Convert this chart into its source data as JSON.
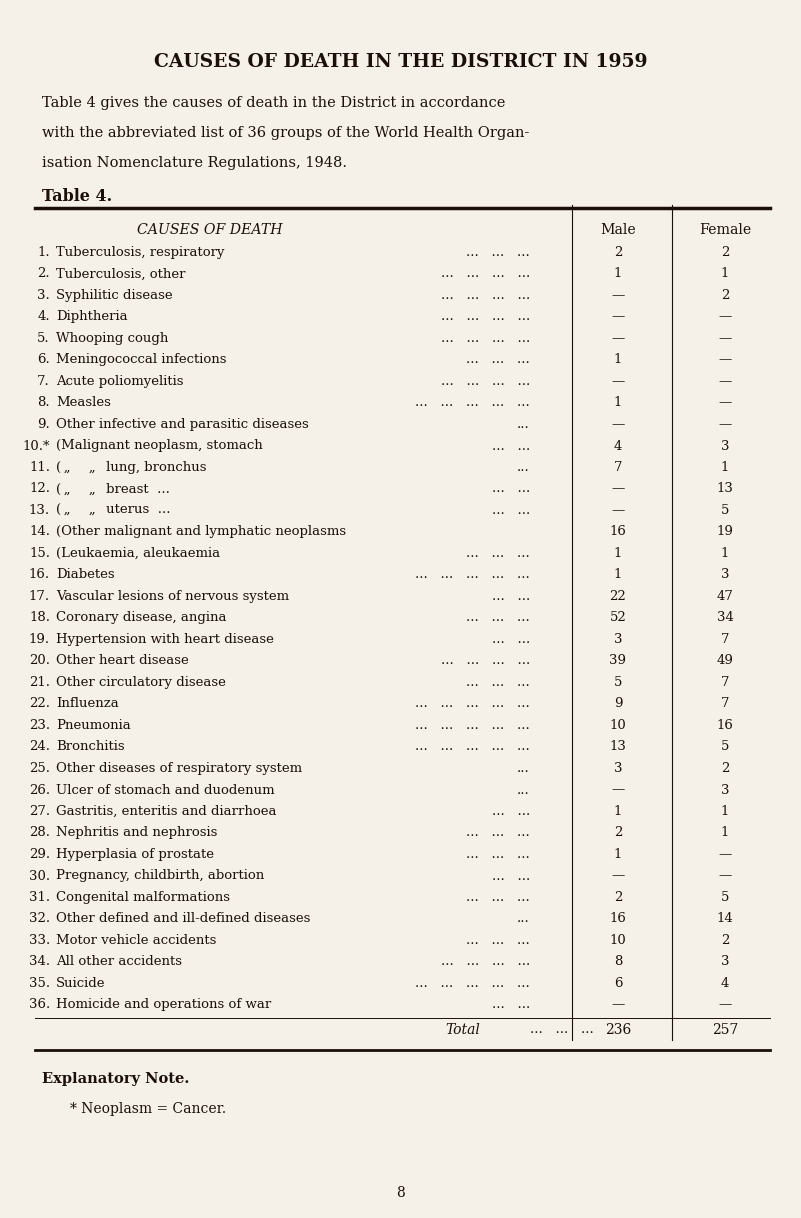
{
  "title": "CAUSES OF DEATH IN THE DISTRICT IN 1959",
  "intro": "Table 4 gives the causes of death in the District in accordance\nwith the abbreviated list of 36 groups of the World Health Organ-\nisation Nomenclature Regulations, 1948.",
  "table_title": "Table 4.",
  "col_header": "CAUSES OF DEATH",
  "col_male": "Male",
  "col_female": "Female",
  "rows": [
    {
      "num": "1.",
      "label": "Tuberculosis, respiratory",
      "dots": "...   ...   ...",
      "male": "2",
      "female": "2"
    },
    {
      "num": "2.",
      "label": "Tuberculosis, other",
      "dots": "...   ...   ...   ...",
      "male": "1",
      "female": "1"
    },
    {
      "num": "3.",
      "label": "Syphilitic disease",
      "dots": "...   ...   ...   ...",
      "male": "—",
      "female": "2"
    },
    {
      "num": "4.",
      "label": "Diphtheria",
      "dots": "...   ...   ...   ...",
      "male": "—",
      "female": "—"
    },
    {
      "num": "5.",
      "label": "Whooping cough",
      "dots": "...   ...   ...   ...",
      "male": "—",
      "female": "—"
    },
    {
      "num": "6.",
      "label": "Meningococcal infections",
      "dots": "...   ...   ...",
      "male": "1",
      "female": "—"
    },
    {
      "num": "7.",
      "label": "Acute poliomyelitis",
      "dots": "...   ...   ...   ...",
      "male": "—",
      "female": "—"
    },
    {
      "num": "8.",
      "label": "Measles",
      "dots": "...   ...   ...   ...   ...",
      "male": "1",
      "female": "—"
    },
    {
      "num": "9.",
      "label": "Other infective and parasitic diseases",
      "dots": "...",
      "male": "—",
      "female": "—"
    },
    {
      "num": "10.*",
      "label": "(Malignant neoplasm, stomach",
      "dots": "...   ...",
      "male": "4",
      "female": "3"
    },
    {
      "num": "11.",
      "label": "( „       „    lung, bronchus",
      "dots": "...",
      "male": "7",
      "female": "1"
    },
    {
      "num": "12.",
      "label": "( „       „    breast  ...",
      "dots": "...   ...",
      "male": "—",
      "female": "13"
    },
    {
      "num": "13.",
      "label": "( „       „    uterus  ...",
      "dots": "...   ...",
      "male": "—",
      "female": "5"
    },
    {
      "num": "14.",
      "label": "(Other malignant and lymphatic neoplasms",
      "dots": "",
      "male": "16",
      "female": "19"
    },
    {
      "num": "15.",
      "label": "(Leukaemia, aleukaemia",
      "dots": "...   ...   ...",
      "male": "1",
      "female": "1"
    },
    {
      "num": "16.",
      "label": "Diabetes",
      "dots": "...   ...   ...   ...   ...",
      "male": "1",
      "female": "3"
    },
    {
      "num": "17.",
      "label": "Vascular lesions of nervous system",
      "dots": "...   ...",
      "male": "22",
      "female": "47"
    },
    {
      "num": "18.",
      "label": "Coronary disease, angina",
      "dots": "...   ...   ...",
      "male": "52",
      "female": "34"
    },
    {
      "num": "19.",
      "label": "Hypertension with heart disease",
      "dots": "...   ...",
      "male": "3",
      "female": "7"
    },
    {
      "num": "20.",
      "label": "Other heart disease",
      "dots": "...   ...   ...   ...",
      "male": "39",
      "female": "49"
    },
    {
      "num": "21.",
      "label": "Other circulatory disease",
      "dots": "...   ...   ...",
      "male": "5",
      "female": "7"
    },
    {
      "num": "22.",
      "label": "Influenza",
      "dots": "...   ...   ...   ...   ...",
      "male": "9",
      "female": "7"
    },
    {
      "num": "23.",
      "label": "Pneumonia",
      "dots": "...   ...   ...   ...   ...",
      "male": "10",
      "female": "16"
    },
    {
      "num": "24.",
      "label": "Bronchitis",
      "dots": "...   ...   ...   ...   ...",
      "male": "13",
      "female": "5"
    },
    {
      "num": "25.",
      "label": "Other diseases of respiratory system",
      "dots": "...",
      "male": "3",
      "female": "2"
    },
    {
      "num": "26.",
      "label": "Ulcer of stomach and duodenum",
      "dots": "...",
      "male": "—",
      "female": "3"
    },
    {
      "num": "27.",
      "label": "Gastritis, enteritis and diarrhoea",
      "dots": "...   ...",
      "male": "1",
      "female": "1"
    },
    {
      "num": "28.",
      "label": "Nephritis and nephrosis",
      "dots": "...   ...   ...",
      "male": "2",
      "female": "1"
    },
    {
      "num": "29.",
      "label": "Hyperplasia of prostate",
      "dots": "...   ...   ...",
      "male": "1",
      "female": "—"
    },
    {
      "num": "30.",
      "label": "Pregnancy, childbirth, abortion",
      "dots": "...   ...",
      "male": "—",
      "female": "—"
    },
    {
      "num": "31.",
      "label": "Congenital malformations",
      "dots": "...   ...   ...",
      "male": "2",
      "female": "5"
    },
    {
      "num": "32.",
      "label": "Other defined and ill-defined diseases",
      "dots": "...",
      "male": "16",
      "female": "14"
    },
    {
      "num": "33.",
      "label": "Motor vehicle accidents",
      "dots": "...   ...   ...",
      "male": "10",
      "female": "2"
    },
    {
      "num": "34.",
      "label": "All other accidents",
      "dots": "...   ...   ...   ...",
      "male": "8",
      "female": "3"
    },
    {
      "num": "35.",
      "label": "Suicide",
      "dots": "...   ...   ...   ...   ...",
      "male": "6",
      "female": "4"
    },
    {
      "num": "36.",
      "label": "Homicide and operations of war",
      "dots": "...   ...",
      "male": "—",
      "female": "—"
    }
  ],
  "total_label": "Total",
  "total_dots": "...   ...   ...",
  "total_male": "236",
  "total_female": "257",
  "note_title": "Explanatory Note.",
  "note_text": "* Neoplasm = Cancer.",
  "page_num": "8",
  "bg_color": "#f5f0e8",
  "text_color": "#1a1008"
}
